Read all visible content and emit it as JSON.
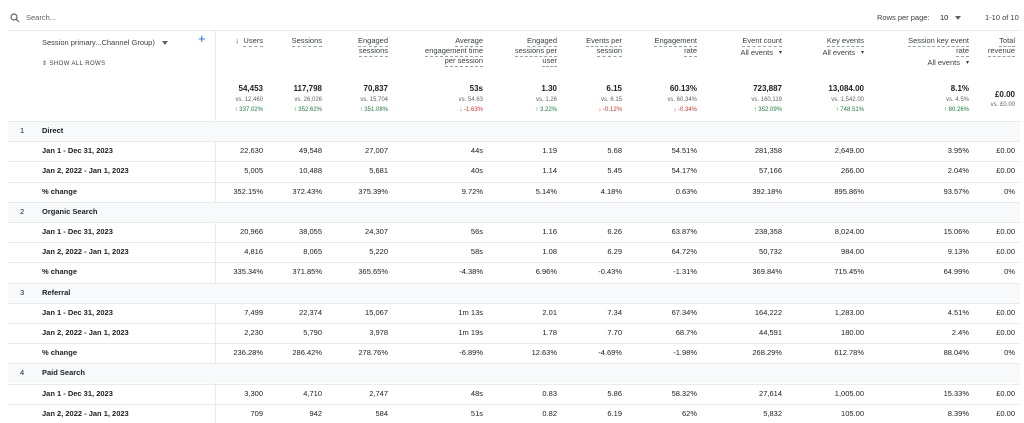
{
  "search": {
    "placeholder": "Search..."
  },
  "pagination": {
    "label": "Rows per page:",
    "value": "10",
    "range": "1-10 of 10"
  },
  "dimension": {
    "label": "Session primary...Channel Group)",
    "show_all": "SHOW ALL ROWS"
  },
  "columns": [
    {
      "header": [
        "Users"
      ],
      "sorted": true
    },
    {
      "header": [
        "Sessions"
      ]
    },
    {
      "header": [
        "Engaged",
        "sessions"
      ]
    },
    {
      "header": [
        "Average",
        "engagement time",
        "per session"
      ]
    },
    {
      "header": [
        "Engaged",
        "sessions per",
        "user"
      ]
    },
    {
      "header": [
        "Events per",
        "session"
      ]
    },
    {
      "header": [
        "Engagement",
        "rate"
      ]
    },
    {
      "header": [
        "Event count"
      ],
      "filter": "All events"
    },
    {
      "header": [
        "Key events"
      ],
      "filter": "All events"
    },
    {
      "header": [
        "Session key event",
        "rate"
      ],
      "filter": "All events"
    },
    {
      "header": [
        "Total",
        "revenue"
      ]
    }
  ],
  "totals": [
    {
      "value": "54,453",
      "vs": "vs. 12,460",
      "change": "↑ 337.02%"
    },
    {
      "value": "117,798",
      "vs": "vs. 26,026",
      "change": "↑ 352.62%"
    },
    {
      "value": "70,837",
      "vs": "vs. 15,704",
      "change": "↑ 351.08%"
    },
    {
      "value": "53s",
      "vs": "vs. 54.63",
      "change": "↓ -1.63%"
    },
    {
      "value": "1.30",
      "vs": "vs. 1.26",
      "change": "↑ 3.22%"
    },
    {
      "value": "6.15",
      "vs": "vs. 6.15",
      "change": "↓ -0.12%"
    },
    {
      "value": "60.13%",
      "vs": "vs. 60.34%",
      "change": "↓ -0.34%"
    },
    {
      "value": "723,887",
      "vs": "vs. 160,119",
      "change": "↑ 352.09%"
    },
    {
      "value": "13,084.00",
      "vs": "vs. 1,542.00",
      "change": "↑ 748.51%"
    },
    {
      "value": "8.1%",
      "vs": "vs. 4.5%",
      "change": "↑ 80.26%"
    },
    {
      "value": "£0.00",
      "vs": "vs. £0.00"
    }
  ],
  "groups": [
    {
      "index": "1",
      "name": "Direct",
      "rows": [
        {
          "label": "Jan 1 - Dec 31, 2023",
          "values": [
            "22,630",
            "49,548",
            "27,007",
            "44s",
            "1.19",
            "5.68",
            "54.51%",
            "281,358",
            "2,649.00",
            "3.95%",
            "£0.00"
          ]
        },
        {
          "label": "Jan 2, 2022 - Jan 1, 2023",
          "values": [
            "5,005",
            "10,488",
            "5,681",
            "40s",
            "1.14",
            "5.45",
            "54.17%",
            "57,166",
            "266.00",
            "2.04%",
            "£0.00"
          ]
        },
        {
          "label": "% change",
          "values": [
            "352.15%",
            "372.43%",
            "375.39%",
            "9.72%",
            "5.14%",
            "4.18%",
            "0.63%",
            "392.18%",
            "895.86%",
            "93.57%",
            "0%"
          ]
        }
      ]
    },
    {
      "index": "2",
      "name": "Organic Search",
      "rows": [
        {
          "label": "Jan 1 - Dec 31, 2023",
          "values": [
            "20,966",
            "38,055",
            "24,307",
            "56s",
            "1.16",
            "6.26",
            "63.87%",
            "238,358",
            "8,024.00",
            "15.06%",
            "£0.00"
          ]
        },
        {
          "label": "Jan 2, 2022 - Jan 1, 2023",
          "values": [
            "4,816",
            "8,065",
            "5,220",
            "58s",
            "1.08",
            "6.29",
            "64.72%",
            "50,732",
            "984.00",
            "9.13%",
            "£0.00"
          ]
        },
        {
          "label": "% change",
          "values": [
            "335.34%",
            "371.85%",
            "365.65%",
            "-4.38%",
            "6.96%",
            "-0.43%",
            "-1.31%",
            "369.84%",
            "715.45%",
            "64.99%",
            "0%"
          ]
        }
      ]
    },
    {
      "index": "3",
      "name": "Referral",
      "rows": [
        {
          "label": "Jan 1 - Dec 31, 2023",
          "values": [
            "7,499",
            "22,374",
            "15,067",
            "1m 13s",
            "2.01",
            "7.34",
            "67.34%",
            "164,222",
            "1,283.00",
            "4.51%",
            "£0.00"
          ]
        },
        {
          "label": "Jan 2, 2022 - Jan 1, 2023",
          "values": [
            "2,230",
            "5,790",
            "3,978",
            "1m 19s",
            "1.78",
            "7.70",
            "68.7%",
            "44,591",
            "180.00",
            "2.4%",
            "£0.00"
          ]
        },
        {
          "label": "% change",
          "values": [
            "236.28%",
            "286.42%",
            "278.76%",
            "-6.89%",
            "12.63%",
            "-4.69%",
            "-1.98%",
            "268.29%",
            "612.78%",
            "88.04%",
            "0%"
          ]
        }
      ]
    },
    {
      "index": "4",
      "name": "Paid Search",
      "rows": [
        {
          "label": "Jan 1 - Dec 31, 2023",
          "values": [
            "3,300",
            "4,710",
            "2,747",
            "48s",
            "0.83",
            "5.86",
            "58.32%",
            "27,614",
            "1,005.00",
            "15.33%",
            "£0.00"
          ]
        },
        {
          "label": "Jan 2, 2022 - Jan 1, 2023",
          "values": [
            "709",
            "942",
            "584",
            "51s",
            "0.82",
            "6.19",
            "62%",
            "5,832",
            "105.00",
            "8.39%",
            "£0.00"
          ]
        }
      ]
    }
  ]
}
